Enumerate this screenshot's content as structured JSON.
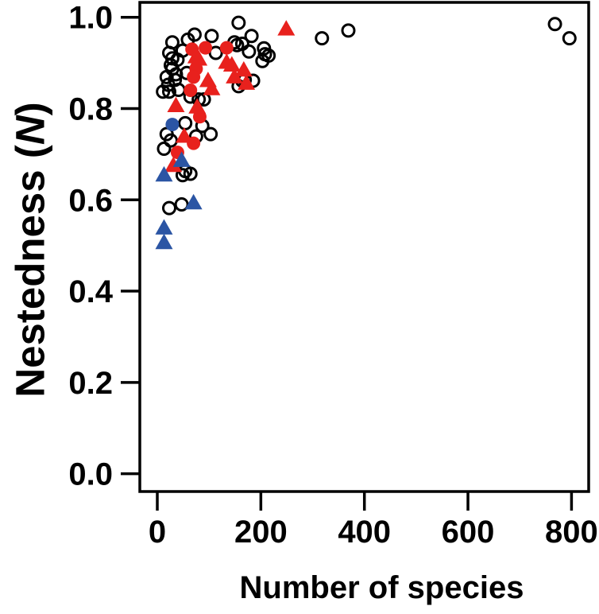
{
  "figure": {
    "xlabel": "Number of species",
    "ylabel_prefix": "Nestedness (",
    "ylabel_italic": "N",
    "ylabel_suffix": ")"
  },
  "chart_data": {
    "type": "scatter",
    "title": "",
    "xlabel": "Number of species",
    "ylabel": "Nestedness (N)",
    "xlim": [
      0,
      800
    ],
    "ylim": [
      0.0,
      1.0
    ],
    "x_ticks": [
      0,
      200,
      400,
      600,
      800
    ],
    "y_ticks": [
      0.0,
      0.2,
      0.4,
      0.6,
      0.8,
      1.0
    ],
    "grid": false,
    "legend": null,
    "colors": {
      "black": "#000000",
      "red": "#e8211d",
      "blue": "#2b55a4"
    },
    "series": [
      {
        "name": "black-open-circles",
        "marker": "circle",
        "fill": "open",
        "color": "black",
        "points": [
          [
            157,
            0.988
          ],
          [
            768,
            0.985
          ],
          [
            369,
            0.971
          ],
          [
            72,
            0.962
          ],
          [
            182,
            0.959
          ],
          [
            105,
            0.959
          ],
          [
            318,
            0.954
          ],
          [
            796,
            0.954
          ],
          [
            59,
            0.951
          ],
          [
            29,
            0.945
          ],
          [
            149,
            0.945
          ],
          [
            164,
            0.942
          ],
          [
            154,
            0.939
          ],
          [
            206,
            0.932
          ],
          [
            49,
            0.927
          ],
          [
            177,
            0.925
          ],
          [
            23,
            0.922
          ],
          [
            113,
            0.922
          ],
          [
            208,
            0.919
          ],
          [
            215,
            0.916
          ],
          [
            29,
            0.91
          ],
          [
            39,
            0.907
          ],
          [
            203,
            0.904
          ],
          [
            26,
            0.895
          ],
          [
            29,
            0.887
          ],
          [
            57,
            0.878
          ],
          [
            36,
            0.875
          ],
          [
            18,
            0.869
          ],
          [
            34,
            0.863
          ],
          [
            169,
            0.863
          ],
          [
            164,
            0.861
          ],
          [
            185,
            0.861
          ],
          [
            21,
            0.852
          ],
          [
            157,
            0.849
          ],
          [
            41,
            0.841
          ],
          [
            23,
            0.837
          ],
          [
            11,
            0.837
          ],
          [
            64,
            0.826
          ],
          [
            90,
            0.82
          ],
          [
            80,
            0.82
          ],
          [
            54,
            0.768
          ],
          [
            87,
            0.762
          ],
          [
            18,
            0.744
          ],
          [
            103,
            0.744
          ],
          [
            75,
            0.739
          ],
          [
            26,
            0.73
          ],
          [
            13,
            0.712
          ],
          [
            54,
            0.663
          ],
          [
            64,
            0.657
          ],
          [
            49,
            0.654
          ],
          [
            47,
            0.59
          ],
          [
            23,
            0.582
          ]
        ]
      },
      {
        "name": "red-filled-circles",
        "marker": "circle",
        "fill": "solid",
        "color": "red",
        "points": [
          [
            67,
            0.93
          ],
          [
            93,
            0.933
          ],
          [
            134,
            0.933
          ],
          [
            75,
            0.887
          ],
          [
            70,
            0.869
          ],
          [
            64,
            0.84
          ],
          [
            82,
            0.782
          ],
          [
            70,
            0.724
          ],
          [
            39,
            0.704
          ]
        ]
      },
      {
        "name": "red-filled-triangles",
        "marker": "triangle",
        "fill": "solid",
        "color": "red",
        "points": [
          [
            249,
            0.974
          ],
          [
            75,
            0.913
          ],
          [
            80,
            0.908
          ],
          [
            134,
            0.901
          ],
          [
            144,
            0.895
          ],
          [
            167,
            0.884
          ],
          [
            149,
            0.869
          ],
          [
            172,
            0.855
          ],
          [
            98,
            0.861
          ],
          [
            105,
            0.843
          ],
          [
            36,
            0.806
          ],
          [
            77,
            0.803
          ],
          [
            52,
            0.739
          ],
          [
            31,
            0.675
          ]
        ]
      },
      {
        "name": "blue-filled-circles",
        "marker": "circle",
        "fill": "solid",
        "color": "blue",
        "points": [
          [
            29,
            0.765
          ]
        ]
      },
      {
        "name": "blue-filled-triangles",
        "marker": "triangle",
        "fill": "solid",
        "color": "blue",
        "points": [
          [
            47,
            0.686
          ],
          [
            13,
            0.654
          ],
          [
            70,
            0.593
          ],
          [
            13,
            0.538
          ],
          [
            13,
            0.506
          ]
        ]
      }
    ]
  }
}
